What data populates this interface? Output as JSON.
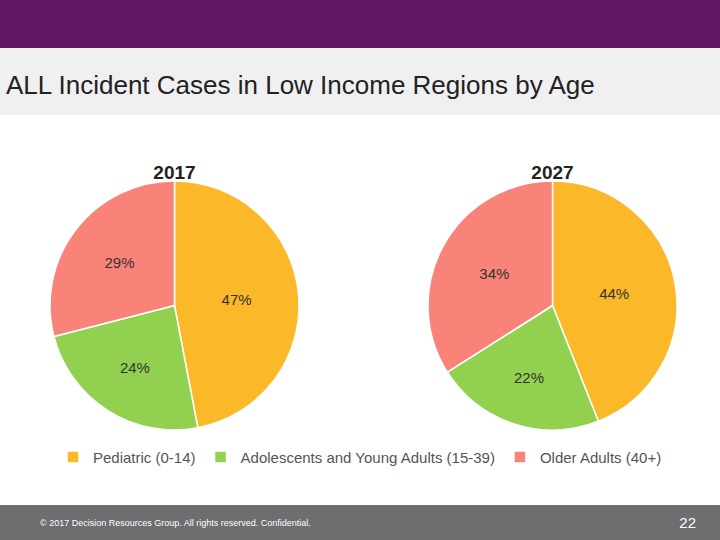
{
  "slide": {
    "title": "ALL Incident Cases in Low Income Regions by Age",
    "footer": "© 2017 Decision Resources Group. All rights reserved. Confidential.",
    "page": 22
  },
  "chart_data": [
    {
      "type": "pie",
      "title": "2017",
      "categories": [
        "Pediatric (0-14)",
        "Adolescents and Young Adults (15-39)",
        "Older Adults (40+)"
      ],
      "values": [
        47,
        24,
        29
      ],
      "value_labels": [
        "47%",
        "24%",
        "29%"
      ],
      "colors": [
        "#fbb829",
        "#92d050",
        "#f98379"
      ],
      "data_labels": true,
      "legend": "bottom"
    },
    {
      "type": "pie",
      "title": "2027",
      "categories": [
        "Pediatric (0-14)",
        "Adolescents and Young Adults (15-39)",
        "Older Adults (40+)"
      ],
      "values": [
        44,
        22,
        34
      ],
      "value_labels": [
        "44%",
        "22%",
        "34%"
      ],
      "colors": [
        "#fbb829",
        "#92d050",
        "#f98379"
      ],
      "data_labels": true,
      "legend": "bottom"
    }
  ]
}
